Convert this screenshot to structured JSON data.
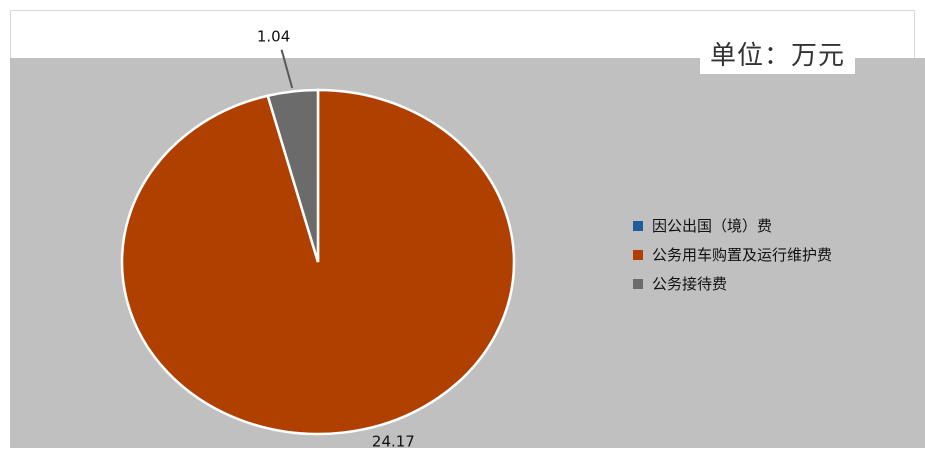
{
  "unit_text": "单位：万元",
  "colors": {
    "plot_background": "#c0c0c0",
    "slice_border": "#ffffff",
    "leader_line": "#595959"
  },
  "chart_data": {
    "type": "pie",
    "title": "",
    "legend_position": "right",
    "start_angle_deg": 0,
    "direction": "clockwise",
    "categories": [
      "因公出国（境）费",
      "公务用车购置及运行维护费",
      "公务接待费"
    ],
    "values": [
      0,
      24.17,
      1.04
    ],
    "data_labels": [
      "",
      "24.17",
      "1.04"
    ],
    "slice_colors": [
      "#1f5c99",
      "#b04000",
      "#6b6b6b"
    ]
  }
}
